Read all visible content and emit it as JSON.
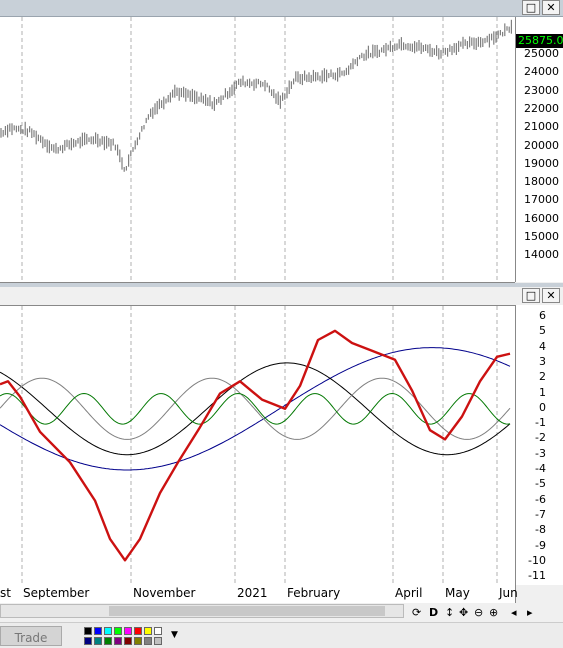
{
  "price_pane": {
    "last_price": "25875.00",
    "y_ticks": [
      "25000",
      "24000",
      "23000",
      "22000",
      "21000",
      "20000",
      "19000",
      "18000",
      "17000",
      "16000",
      "15000",
      "14000"
    ],
    "colors": {
      "bars": "#7f7f7f",
      "grid": "#b0b0b0",
      "badge_bg": "#000000",
      "badge_text": "#00ff00"
    }
  },
  "cycle_pane": {
    "y_ticks": [
      "6",
      "5",
      "4",
      "3",
      "2",
      "1",
      "0",
      "-1",
      "-2",
      "-3",
      "-4",
      "-5",
      "-6",
      "-7",
      "-8",
      "-9",
      "-10",
      "-11"
    ],
    "colors": {
      "composite": "#cc1111",
      "cycle_long": "#00008b",
      "cycle_mid": "#000000",
      "cycle_short": "#808080",
      "cycle_shortest": "#007700"
    }
  },
  "x_axis": {
    "labels": [
      "st",
      "September",
      "November",
      "2021",
      "February",
      "April",
      "May",
      "Jun"
    ]
  },
  "toolbar": {
    "trade_label": "Trade",
    "d_label": "D",
    "icons": [
      "refresh-icon",
      "arrows-vertical-icon",
      "arrows-cross-icon",
      "zoom-out-icon",
      "zoom-in-icon",
      "scroll-left-icon",
      "scroll-right-icon"
    ]
  },
  "palette_colors": [
    "#000000",
    "#0000ff",
    "#00ffff",
    "#00ff00",
    "#ff00ff",
    "#ff0000",
    "#ffff00",
    "#ffffff",
    "#000080",
    "#008080",
    "#008000",
    "#800080",
    "#800000",
    "#808000",
    "#808080",
    "#c0c0c0"
  ]
}
